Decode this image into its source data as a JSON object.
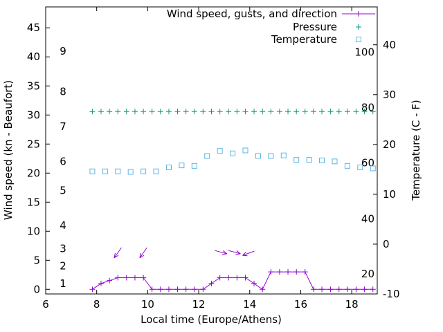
{
  "chart_data": {
    "type": "line",
    "title": "",
    "xlabel": "Local time (Europe/Athens)",
    "ylabel_left": "Wind speed (kn - Beaufort)",
    "ylabel_right": "Temperature (C - F)",
    "grid": false,
    "x_axis": {
      "min": 6,
      "max": 19,
      "ticks": [
        6,
        8,
        10,
        12,
        14,
        16,
        18
      ]
    },
    "y_left_axis": {
      "units": "kn",
      "min": -0.8,
      "max": 48.6,
      "ticks": [
        0,
        5,
        10,
        15,
        20,
        25,
        30,
        35,
        40,
        45
      ],
      "beaufort_scale": [
        {
          "beaufort": "1",
          "kn": 1
        },
        {
          "beaufort": "2",
          "kn": 4
        },
        {
          "beaufort": "3",
          "kn": 7
        },
        {
          "beaufort": "4",
          "kn": 11
        },
        {
          "beaufort": "5",
          "kn": 17
        },
        {
          "beaufort": "6",
          "kn": 22
        },
        {
          "beaufort": "7",
          "kn": 28
        },
        {
          "beaufort": "8",
          "kn": 34
        },
        {
          "beaufort": "9",
          "kn": 41
        }
      ]
    },
    "y_right_axis": {
      "units": "C",
      "min": -10,
      "max": 47.6,
      "ticks": [
        -10,
        0,
        10,
        20,
        30,
        40
      ],
      "fahrenheit_scale": [
        {
          "f": "20",
          "c": -6.7
        },
        {
          "f": "40",
          "c": 4.4
        },
        {
          "f": "60",
          "c": 15.6
        },
        {
          "f": "80",
          "c": 26.7
        },
        {
          "f": "100",
          "c": 37.8
        }
      ]
    },
    "legend": {
      "position": "top-right-inside",
      "entries": [
        {
          "label": "Wind speed, gusts, and direction",
          "series": "wind_speed",
          "color": "#9400d3",
          "sample": "line-plus"
        },
        {
          "label": "Pressure",
          "series": "pressure",
          "color": "#009e73",
          "sample": "plus"
        },
        {
          "label": "Temperature",
          "series": "temperature",
          "color": "#56b4e9",
          "sample": "square"
        }
      ]
    },
    "series": {
      "wind_speed": {
        "axis": "left",
        "color": "#9400d3",
        "marker": "plus",
        "x": [
          7.83,
          8.17,
          8.5,
          8.83,
          9.17,
          9.5,
          9.83,
          10.17,
          10.5,
          10.83,
          11.17,
          11.5,
          11.83,
          12.17,
          12.5,
          12.83,
          13.17,
          13.5,
          13.83,
          14.17,
          14.5,
          14.83,
          15.17,
          15.5,
          15.83,
          16.17,
          16.5,
          16.83,
          17.17,
          17.5,
          17.83,
          18.17,
          18.5,
          18.83
        ],
        "y_kn": [
          0,
          1,
          1.5,
          2,
          2,
          2,
          2,
          0,
          0,
          0,
          0,
          0,
          0,
          0,
          1,
          2,
          2,
          2,
          2,
          1,
          0,
          3,
          3,
          3,
          3,
          3,
          0,
          0,
          0,
          0,
          0,
          0,
          0,
          0
        ]
      },
      "wind_direction_arrows": {
        "color": "#9400d3",
        "arrows": [
          {
            "x": 8.83,
            "y_kn": 6.3,
            "dir_deg": 235
          },
          {
            "x": 9.83,
            "y_kn": 6.3,
            "dir_deg": 235
          },
          {
            "x": 12.87,
            "y_kn": 6.4,
            "dir_deg": 345
          },
          {
            "x": 13.4,
            "y_kn": 6.4,
            "dir_deg": 345
          },
          {
            "x": 13.95,
            "y_kn": 6.2,
            "dir_deg": 200
          }
        ]
      },
      "pressure": {
        "axis": "left",
        "color": "#009e73",
        "marker": "plus",
        "plotted_level_kn": 30.6,
        "x": [
          7.83,
          8.17,
          8.5,
          8.83,
          9.17,
          9.5,
          9.83,
          10.17,
          10.5,
          10.83,
          11.17,
          11.5,
          11.83,
          12.17,
          12.5,
          12.83,
          13.17,
          13.5,
          13.83,
          14.17,
          14.5,
          14.83,
          15.17,
          15.5,
          15.83,
          16.17,
          16.5,
          16.83,
          17.17,
          17.5,
          17.83,
          18.17,
          18.5,
          18.83
        ]
      },
      "temperature": {
        "axis": "right",
        "color": "#56b4e9",
        "marker": "open-square",
        "x": [
          7.83,
          8.33,
          8.83,
          9.33,
          9.83,
          10.33,
          10.83,
          11.33,
          11.83,
          12.33,
          12.83,
          13.33,
          13.83,
          14.33,
          14.83,
          15.33,
          15.83,
          16.33,
          16.83,
          17.33,
          17.83,
          18.33,
          18.83
        ],
        "y_c": [
          14.6,
          14.6,
          14.6,
          14.5,
          14.6,
          14.6,
          15.4,
          15.8,
          15.7,
          17.7,
          18.7,
          18.2,
          18.8,
          17.7,
          17.7,
          17.8,
          16.9,
          16.9,
          16.8,
          16.6,
          15.7,
          15.4,
          15.2
        ]
      }
    }
  }
}
